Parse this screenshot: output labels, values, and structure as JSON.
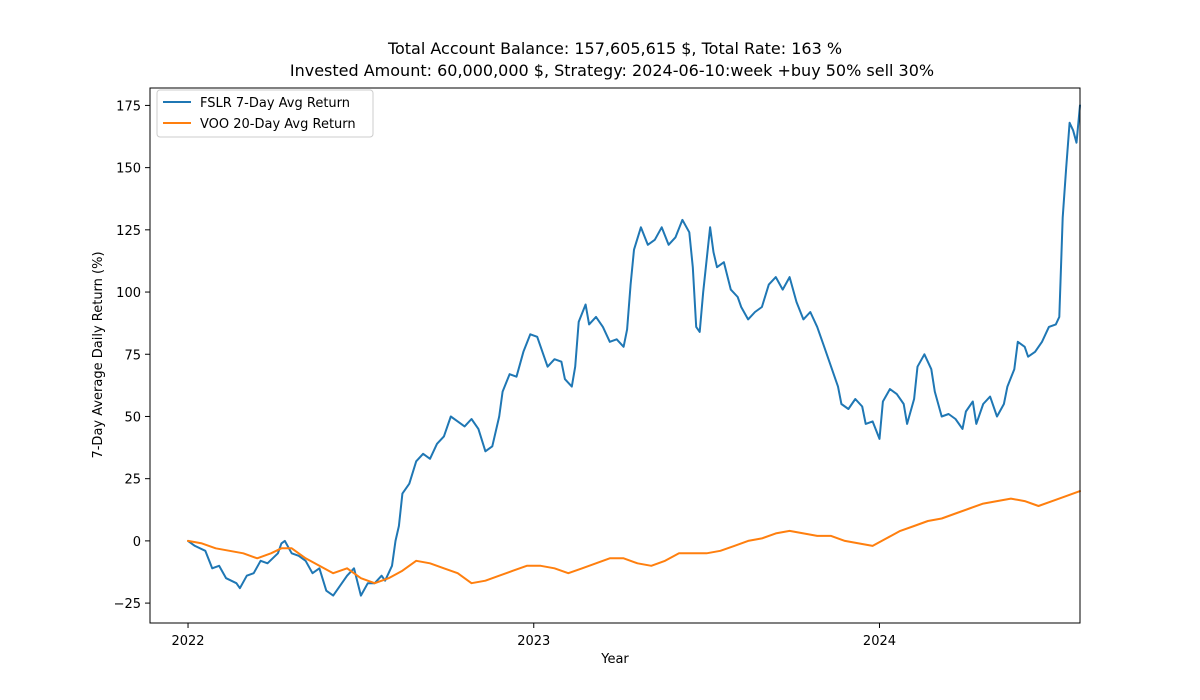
{
  "chart_data": {
    "type": "line",
    "title_line1": "Total Account Balance: 157,605,615 $, Total Rate: 163 %",
    "title_line2": "Invested Amount: 60,000,000 $, Strategy: 2024-06-10:week +buy 50% sell 30%",
    "xlabel": "Year",
    "ylabel": "7-Day Average Daily Return (%)",
    "xlim": [
      2021.89,
      2024.58
    ],
    "ylim": [
      -33,
      182
    ],
    "x_ticks": [
      2022,
      2023,
      2024
    ],
    "x_tick_labels": [
      "2022",
      "2023",
      "2024"
    ],
    "y_ticks": [
      -25,
      0,
      25,
      50,
      75,
      100,
      125,
      150,
      175
    ],
    "y_tick_labels": [
      "−25",
      "0",
      "25",
      "50",
      "75",
      "100",
      "125",
      "150",
      "175"
    ],
    "grid": false,
    "legend_position": "upper-left",
    "series": [
      {
        "name": "FSLR 7-Day Avg Return",
        "color": "#1f77b4",
        "points": [
          [
            2022.0,
            0
          ],
          [
            2022.02,
            -2
          ],
          [
            2022.05,
            -4
          ],
          [
            2022.07,
            -11
          ],
          [
            2022.09,
            -10
          ],
          [
            2022.11,
            -15
          ],
          [
            2022.14,
            -17
          ],
          [
            2022.15,
            -19
          ],
          [
            2022.17,
            -14
          ],
          [
            2022.19,
            -13
          ],
          [
            2022.21,
            -8
          ],
          [
            2022.23,
            -9
          ],
          [
            2022.26,
            -5
          ],
          [
            2022.27,
            -1
          ],
          [
            2022.28,
            0
          ],
          [
            2022.3,
            -5
          ],
          [
            2022.32,
            -6
          ],
          [
            2022.34,
            -8
          ],
          [
            2022.36,
            -13
          ],
          [
            2022.38,
            -11
          ],
          [
            2022.4,
            -20
          ],
          [
            2022.42,
            -22
          ],
          [
            2022.44,
            -18
          ],
          [
            2022.46,
            -14
          ],
          [
            2022.48,
            -11
          ],
          [
            2022.5,
            -22
          ],
          [
            2022.52,
            -17
          ],
          [
            2022.54,
            -17
          ],
          [
            2022.56,
            -14
          ],
          [
            2022.57,
            -16
          ],
          [
            2022.59,
            -10
          ],
          [
            2022.6,
            0
          ],
          [
            2022.61,
            6
          ],
          [
            2022.62,
            19
          ],
          [
            2022.64,
            23
          ],
          [
            2022.66,
            32
          ],
          [
            2022.68,
            35
          ],
          [
            2022.7,
            33
          ],
          [
            2022.72,
            39
          ],
          [
            2022.74,
            42
          ],
          [
            2022.76,
            50
          ],
          [
            2022.78,
            48
          ],
          [
            2022.8,
            46
          ],
          [
            2022.82,
            49
          ],
          [
            2022.84,
            45
          ],
          [
            2022.86,
            36
          ],
          [
            2022.88,
            38
          ],
          [
            2022.9,
            50
          ],
          [
            2022.91,
            60
          ],
          [
            2022.93,
            67
          ],
          [
            2022.95,
            66
          ],
          [
            2022.97,
            76
          ],
          [
            2022.99,
            83
          ],
          [
            2023.01,
            82
          ],
          [
            2023.03,
            74
          ],
          [
            2023.04,
            70
          ],
          [
            2023.06,
            73
          ],
          [
            2023.08,
            72
          ],
          [
            2023.09,
            65
          ],
          [
            2023.11,
            62
          ],
          [
            2023.12,
            70
          ],
          [
            2023.13,
            88
          ],
          [
            2023.15,
            95
          ],
          [
            2023.16,
            87
          ],
          [
            2023.18,
            90
          ],
          [
            2023.2,
            86
          ],
          [
            2023.22,
            80
          ],
          [
            2023.24,
            81
          ],
          [
            2023.26,
            78
          ],
          [
            2023.27,
            85
          ],
          [
            2023.28,
            103
          ],
          [
            2023.29,
            117
          ],
          [
            2023.31,
            126
          ],
          [
            2023.33,
            119
          ],
          [
            2023.35,
            121
          ],
          [
            2023.37,
            126
          ],
          [
            2023.39,
            119
          ],
          [
            2023.41,
            122
          ],
          [
            2023.43,
            129
          ],
          [
            2023.45,
            124
          ],
          [
            2023.46,
            110
          ],
          [
            2023.47,
            86
          ],
          [
            2023.48,
            84
          ],
          [
            2023.49,
            100
          ],
          [
            2023.51,
            126
          ],
          [
            2023.52,
            116
          ],
          [
            2023.53,
            110
          ],
          [
            2023.55,
            112
          ],
          [
            2023.57,
            101
          ],
          [
            2023.59,
            98
          ],
          [
            2023.6,
            94
          ],
          [
            2023.62,
            89
          ],
          [
            2023.64,
            92
          ],
          [
            2023.66,
            94
          ],
          [
            2023.68,
            103
          ],
          [
            2023.7,
            106
          ],
          [
            2023.72,
            101
          ],
          [
            2023.74,
            106
          ],
          [
            2023.76,
            96
          ],
          [
            2023.78,
            89
          ],
          [
            2023.8,
            92
          ],
          [
            2023.82,
            86
          ],
          [
            2023.84,
            78
          ],
          [
            2023.86,
            70
          ],
          [
            2023.88,
            62
          ],
          [
            2023.89,
            55
          ],
          [
            2023.91,
            53
          ],
          [
            2023.93,
            57
          ],
          [
            2023.95,
            54
          ],
          [
            2023.96,
            47
          ],
          [
            2023.98,
            48
          ],
          [
            2024.0,
            41
          ],
          [
            2024.01,
            56
          ],
          [
            2024.03,
            61
          ],
          [
            2024.05,
            59
          ],
          [
            2024.07,
            55
          ],
          [
            2024.08,
            47
          ],
          [
            2024.1,
            57
          ],
          [
            2024.11,
            70
          ],
          [
            2024.13,
            75
          ],
          [
            2024.15,
            69
          ],
          [
            2024.16,
            60
          ],
          [
            2024.18,
            50
          ],
          [
            2024.2,
            51
          ],
          [
            2024.22,
            49
          ],
          [
            2024.24,
            45
          ],
          [
            2024.25,
            52
          ],
          [
            2024.27,
            56
          ],
          [
            2024.28,
            47
          ],
          [
            2024.3,
            55
          ],
          [
            2024.32,
            58
          ],
          [
            2024.34,
            50
          ],
          [
            2024.36,
            55
          ],
          [
            2024.37,
            62
          ],
          [
            2024.39,
            69
          ],
          [
            2024.4,
            80
          ],
          [
            2024.42,
            78
          ],
          [
            2024.43,
            74
          ],
          [
            2024.45,
            76
          ],
          [
            2024.47,
            80
          ],
          [
            2024.49,
            86
          ],
          [
            2024.51,
            87
          ],
          [
            2024.52,
            90
          ],
          [
            2024.53,
            130
          ],
          [
            2024.54,
            150
          ],
          [
            2024.55,
            168
          ],
          [
            2024.56,
            165
          ],
          [
            2024.57,
            160
          ],
          [
            2024.58,
            175
          ]
        ]
      },
      {
        "name": "VOO 20-Day Avg Return",
        "color": "#ff7f0e",
        "points": [
          [
            2022.0,
            0
          ],
          [
            2022.04,
            -1
          ],
          [
            2022.08,
            -3
          ],
          [
            2022.12,
            -4
          ],
          [
            2022.16,
            -5
          ],
          [
            2022.2,
            -7
          ],
          [
            2022.24,
            -5
          ],
          [
            2022.27,
            -3
          ],
          [
            2022.3,
            -3
          ],
          [
            2022.34,
            -7
          ],
          [
            2022.38,
            -10
          ],
          [
            2022.42,
            -13
          ],
          [
            2022.46,
            -11
          ],
          [
            2022.5,
            -15
          ],
          [
            2022.54,
            -17
          ],
          [
            2022.58,
            -15
          ],
          [
            2022.62,
            -12
          ],
          [
            2022.66,
            -8
          ],
          [
            2022.7,
            -9
          ],
          [
            2022.74,
            -11
          ],
          [
            2022.78,
            -13
          ],
          [
            2022.82,
            -17
          ],
          [
            2022.86,
            -16
          ],
          [
            2022.9,
            -14
          ],
          [
            2022.94,
            -12
          ],
          [
            2022.98,
            -10
          ],
          [
            2023.02,
            -10
          ],
          [
            2023.06,
            -11
          ],
          [
            2023.1,
            -13
          ],
          [
            2023.14,
            -11
          ],
          [
            2023.18,
            -9
          ],
          [
            2023.22,
            -7
          ],
          [
            2023.26,
            -7
          ],
          [
            2023.3,
            -9
          ],
          [
            2023.34,
            -10
          ],
          [
            2023.38,
            -8
          ],
          [
            2023.42,
            -5
          ],
          [
            2023.46,
            -5
          ],
          [
            2023.5,
            -5
          ],
          [
            2023.54,
            -4
          ],
          [
            2023.58,
            -2
          ],
          [
            2023.62,
            0
          ],
          [
            2023.66,
            1
          ],
          [
            2023.7,
            3
          ],
          [
            2023.74,
            4
          ],
          [
            2023.78,
            3
          ],
          [
            2023.82,
            2
          ],
          [
            2023.86,
            2
          ],
          [
            2023.9,
            0
          ],
          [
            2023.94,
            -1
          ],
          [
            2023.98,
            -2
          ],
          [
            2024.02,
            1
          ],
          [
            2024.06,
            4
          ],
          [
            2024.1,
            6
          ],
          [
            2024.14,
            8
          ],
          [
            2024.18,
            9
          ],
          [
            2024.22,
            11
          ],
          [
            2024.26,
            13
          ],
          [
            2024.3,
            15
          ],
          [
            2024.34,
            16
          ],
          [
            2024.38,
            17
          ],
          [
            2024.42,
            16
          ],
          [
            2024.46,
            14
          ],
          [
            2024.5,
            16
          ],
          [
            2024.54,
            18
          ],
          [
            2024.58,
            20
          ]
        ]
      }
    ]
  }
}
